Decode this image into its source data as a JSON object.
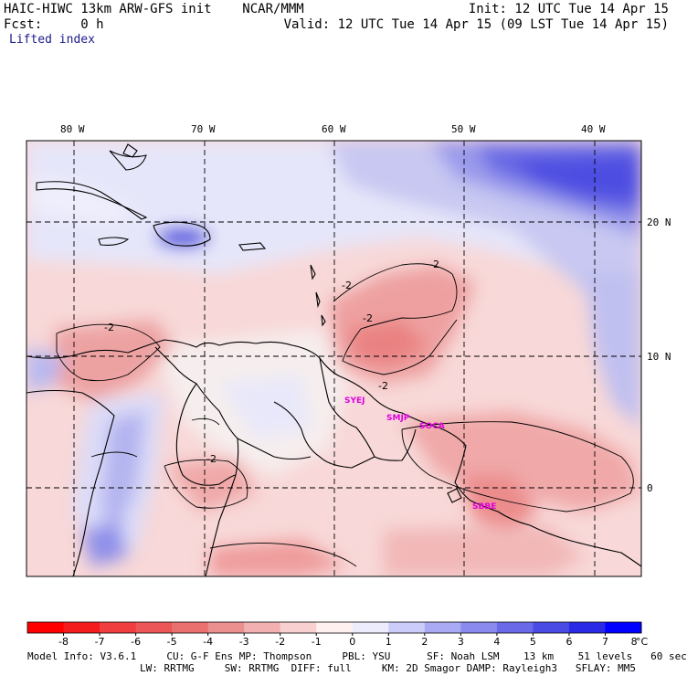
{
  "header": {
    "model_line": "HAIC-HIWC 13km ARW-GFS init    NCAR/MMM",
    "fcst_line": "Fcst:     0 h",
    "field": "Lifted index",
    "init": "Init: 12 UTC Tue 14 Apr 15",
    "valid": "Valid: 12 UTC Tue 14 Apr 15 (09 LST Tue 14 Apr 15)"
  },
  "map": {
    "lon_labels": [
      "80 W",
      "70 W",
      "60 W",
      "50 W",
      "40 W"
    ],
    "lat_labels": [
      "20 N",
      "10 N",
      "0"
    ],
    "contour_label": "-2",
    "stations": [
      "SYEJ",
      "SMJP",
      "SOCA",
      "SBBE"
    ]
  },
  "colorbar": {
    "ticks": [
      "-8",
      "-7",
      "-6",
      "-5",
      "-4",
      "-3",
      "-2",
      "-1",
      "0",
      "1",
      "2",
      "3",
      "4",
      "5",
      "6",
      "7",
      "8"
    ],
    "unit": "°C",
    "colors": [
      "#ff0000",
      "#f41c1c",
      "#f03e3e",
      "#ec5656",
      "#ea7070",
      "#ec8f8f",
      "#f2b0b0",
      "#f8d0d0",
      "#fff0f0",
      "#ececfc",
      "#ccccfa",
      "#aaaaf4",
      "#8a8aee",
      "#6a6ae8",
      "#4a4ae4",
      "#2a2ae6",
      "#0000ff"
    ]
  },
  "footer": {
    "line1": "Model Info: V3.6.1     CU: G-F Ens MP: Thompson     PBL: YSU      SF: Noah LSM    13 km    51 levels   60 sec",
    "line2": "LW: RRTMG     SW: RRTMG  DIFF: full     KM: 2D Smagor DAMP: Rayleigh3   SFLAY: MM5"
  }
}
